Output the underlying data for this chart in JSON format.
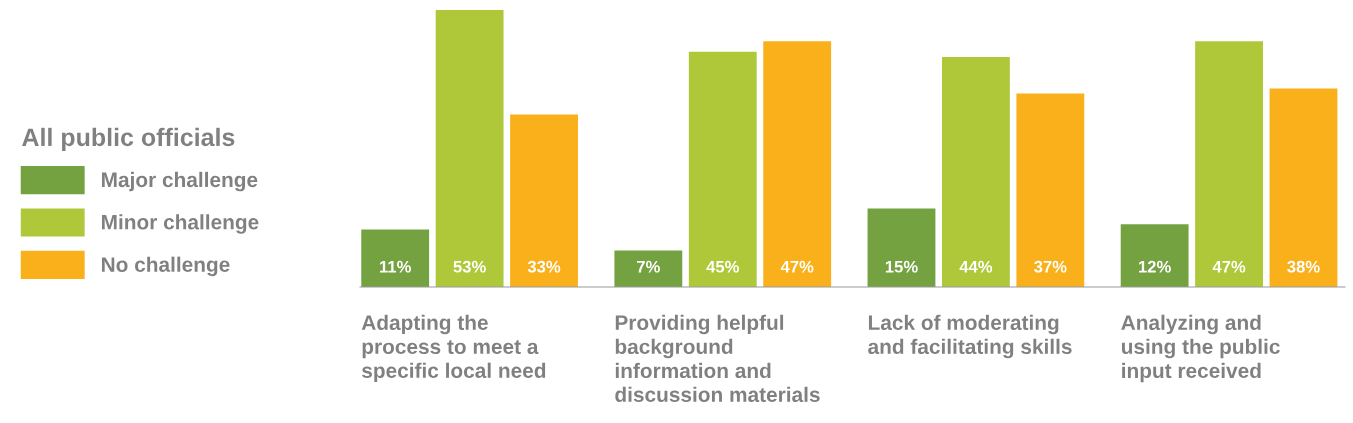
{
  "chart_data": {
    "type": "bar",
    "legend_title": "All public officials",
    "legend": "left",
    "categories": [
      "Adapting the\nprocess to meet a\nspecific local need",
      "Providing helpful\nbackground\ninformation and\ndiscussion materials",
      "Lack of moderating\nand facilitating skills",
      "Analyzing and\nusing the public\ninput received"
    ],
    "series": [
      {
        "name": "Major challenge",
        "color": "#75a241",
        "values": [
          11,
          7,
          15,
          12
        ],
        "value_labels": [
          "11%",
          "7%",
          "15%",
          "12%"
        ]
      },
      {
        "name": "Minor challenge",
        "color": "#afc83a",
        "values": [
          53,
          45,
          44,
          47
        ],
        "value_labels": [
          "53%",
          "45%",
          "44%",
          "47%"
        ]
      },
      {
        "name": "No challenge",
        "color": "#f9b01a",
        "values": [
          33,
          47,
          37,
          38
        ],
        "value_labels": [
          "33%",
          "47%",
          "37%",
          "38%"
        ]
      }
    ]
  }
}
